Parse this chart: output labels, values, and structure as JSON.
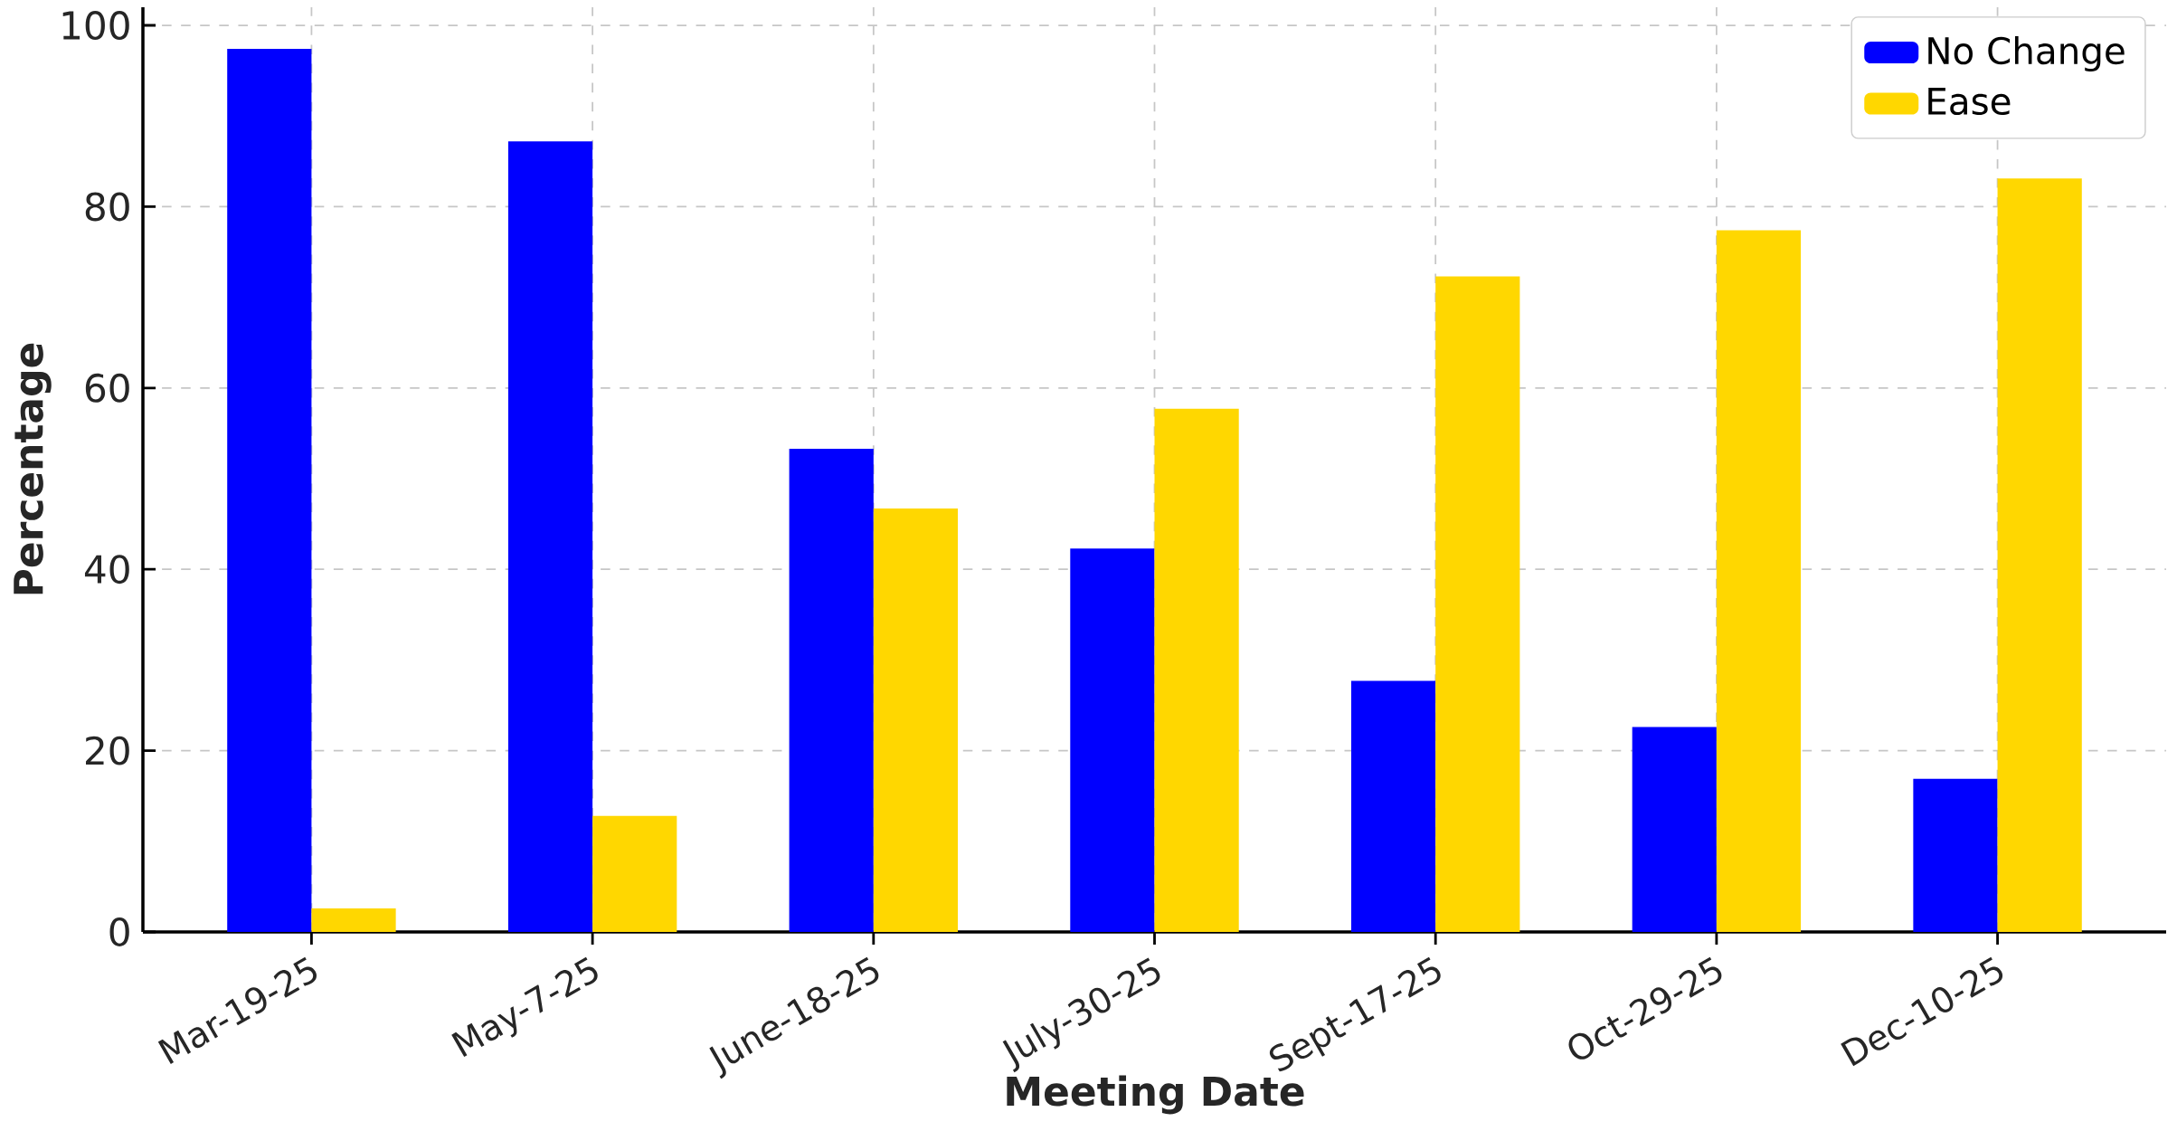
{
  "chart_data": {
    "type": "bar",
    "xlabel": "Meeting Date",
    "ylabel": "Percentage",
    "categories": [
      "Mar-19-25",
      "May-7-25",
      "June-18-25",
      "July-30-25",
      "Sept-17-25",
      "Oct-29-25",
      "Dec-10-25"
    ],
    "series": [
      {
        "name": "No Change",
        "color": "#0000ff",
        "values": [
          97.4,
          87.2,
          53.3,
          42.3,
          27.7,
          22.6,
          16.9
        ]
      },
      {
        "name": "Ease",
        "color": "#ffd700",
        "values": [
          2.6,
          12.8,
          46.7,
          57.7,
          72.3,
          77.4,
          83.1
        ]
      }
    ],
    "ylim": [
      0,
      102
    ],
    "yticks": [
      0,
      20,
      40,
      60,
      80,
      100
    ],
    "grid": true,
    "legend": "top right"
  }
}
